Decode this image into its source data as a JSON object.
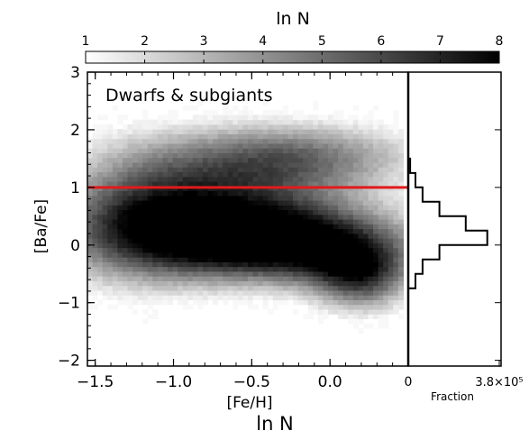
{
  "chart_data": [
    {
      "type": "heatmap",
      "title": "",
      "annotation": "Dwarfs & subgiants",
      "xlabel": "[Fe/H]",
      "ylabel": "[Ba/Fe]",
      "xlim": [
        -1.55,
        0.5
      ],
      "ylim": [
        -2.1,
        3.0
      ],
      "xticks": [
        -1.5,
        -1.0,
        -0.5,
        0.0
      ],
      "yticks": [
        -2,
        -1,
        0,
        1,
        2,
        3
      ],
      "xtick_labels": [
        "−1.5",
        "−1.0",
        "−0.5",
        "0.0"
      ],
      "ytick_labels": [
        "−2",
        "−1",
        "0",
        "1",
        "2",
        "3"
      ],
      "reference_line": {
        "y": 1.0,
        "color": "#e31a1c"
      },
      "colorbar": {
        "label": "ln N",
        "range": [
          1,
          8
        ],
        "ticks": [
          1,
          2,
          3,
          4,
          5,
          6,
          7,
          8
        ],
        "tick_labels": [
          "1",
          "2",
          "3",
          "4",
          "5",
          "6",
          "7",
          "8"
        ]
      },
      "density_components": [
        {
          "x": -0.28,
          "y": 0.06,
          "sx": 0.55,
          "sy": 0.48,
          "weight": 7.1
        },
        {
          "x": -0.05,
          "y": -0.2,
          "sx": 0.35,
          "sy": 0.38,
          "weight": 0.7
        },
        {
          "x": -0.95,
          "y": 0.2,
          "sx": 0.6,
          "sy": 0.55,
          "weight": 4.2
        },
        {
          "x": 0.2,
          "y": -0.55,
          "sx": 0.22,
          "sy": 0.42,
          "weight": 5.2
        },
        {
          "x": -0.2,
          "y": 1.55,
          "sx": 0.55,
          "sy": 0.42,
          "weight": 4.1
        },
        {
          "x": -0.75,
          "y": 1.0,
          "sx": 0.55,
          "sy": 0.6,
          "weight": 3.4
        },
        {
          "x": -1.25,
          "y": 0.5,
          "sx": 0.35,
          "sy": 0.9,
          "weight": 2.6
        }
      ]
    },
    {
      "type": "line",
      "title": "",
      "xlabel": "Fraction",
      "xtick_labels": [
        "0",
        "3.8×10⁵"
      ],
      "xlim": [
        0,
        380000
      ],
      "step_histogram": {
        "bin_edges": [
          -0.75,
          -0.5,
          -0.25,
          0.0,
          0.25,
          0.5,
          0.75,
          1.0,
          1.25,
          1.5
        ],
        "values": [
          30000,
          60000,
          130000,
          330000,
          240000,
          130000,
          60000,
          30000,
          8000
        ]
      }
    }
  ],
  "footer_label": "ln N"
}
